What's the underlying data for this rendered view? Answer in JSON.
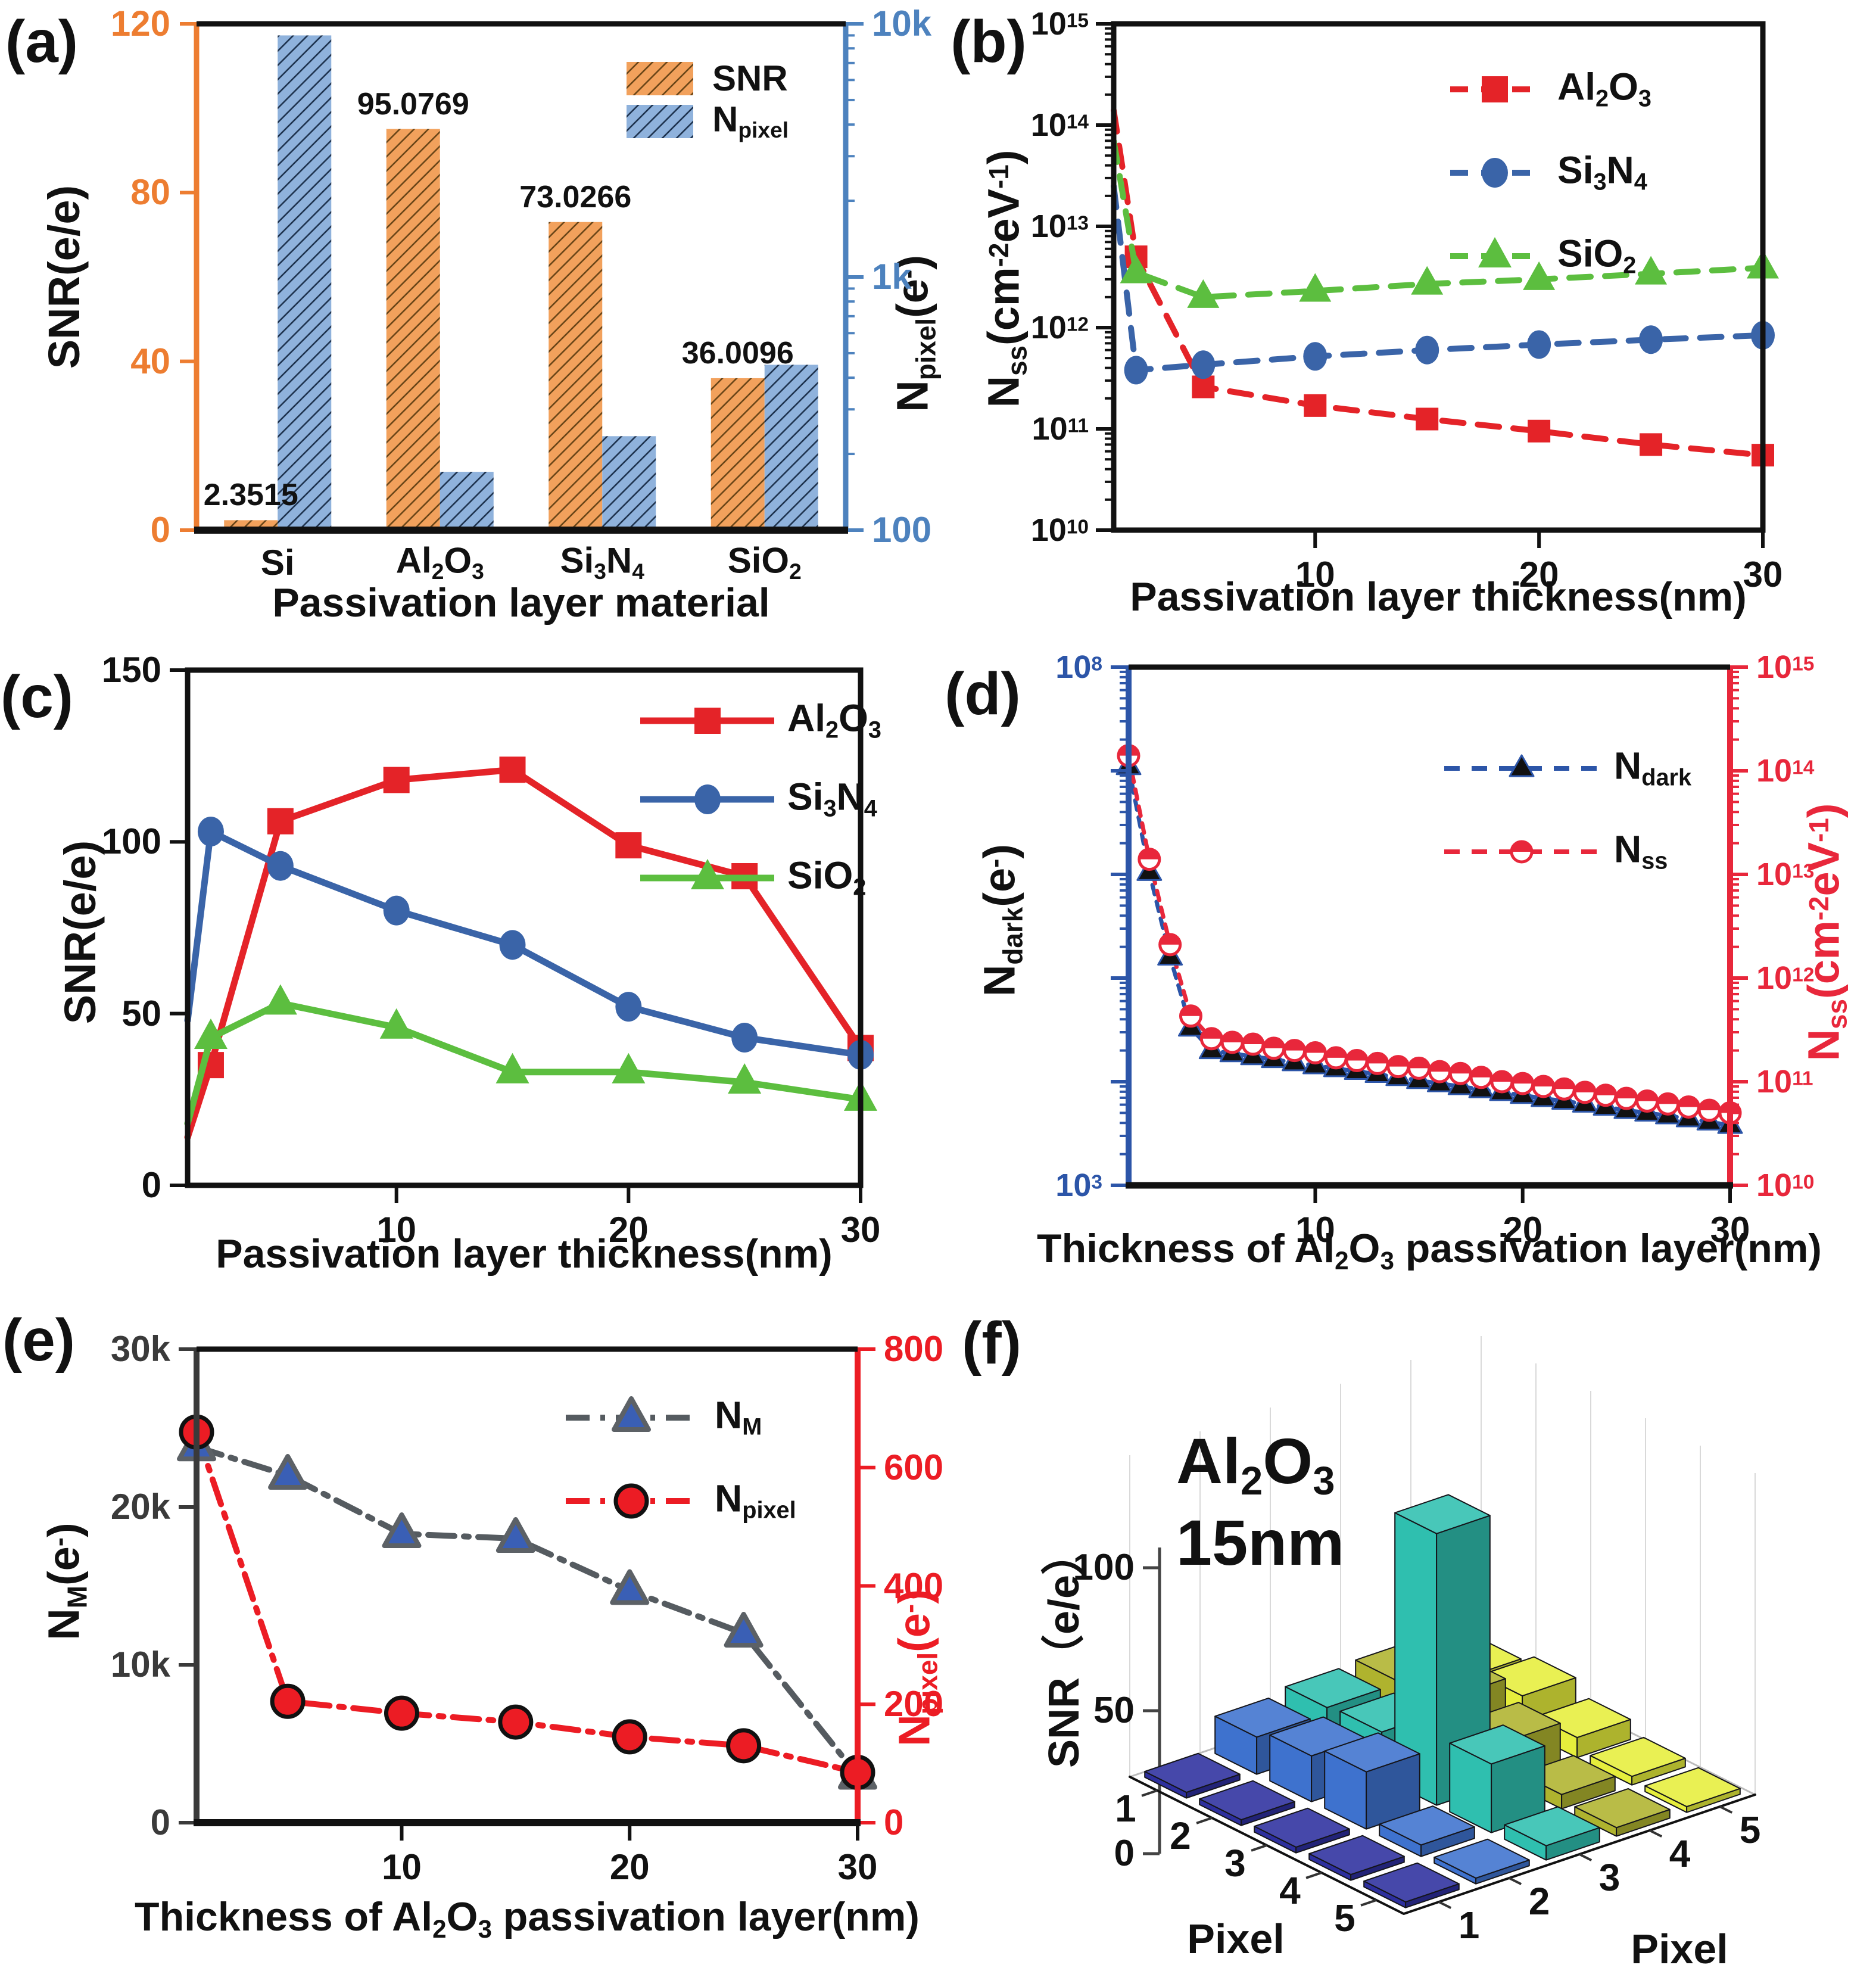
{
  "chart_data": [
    {
      "id": "a",
      "panel_label": "(a)",
      "type": "bar",
      "categories": [
        "Si",
        "Al_{2}O_{3}",
        "Si_{3}N_{4}",
        "SiO_{2}"
      ],
      "xlabel": "Passivation layer material",
      "left_axis": {
        "label": "SNR(e/e)",
        "range": [
          0,
          120
        ],
        "ticks": [
          0,
          40,
          80,
          120
        ],
        "color": "#ED7D31"
      },
      "right_axis": {
        "label": "N_{pixel}(e^{-})",
        "scale": "log",
        "range": [
          100,
          10000
        ],
        "ticks": [
          100,
          1000,
          10000
        ],
        "tick_labels": [
          "100",
          "1k",
          "10k"
        ],
        "color": "#4D82BE"
      },
      "series": [
        {
          "name": "SNR",
          "axis": "left",
          "bar_color": "#F2A15C",
          "hatch": "#6b4618",
          "values": [
            2.3515,
            95.0769,
            73.0266,
            36.0096
          ],
          "value_labels": [
            "2.3515",
            "95.0769",
            "73.0266",
            "36.0096"
          ]
        },
        {
          "name": "N_{pixel}",
          "axis": "right",
          "bar_color": "#8FB2DC",
          "hatch": "#1f3450",
          "values": [
            9000,
            170,
            235,
            450
          ]
        }
      ],
      "legend": [
        "SNR",
        "N_{pixel}"
      ]
    },
    {
      "id": "b",
      "panel_label": "(b)",
      "type": "line",
      "xlabel": "Passivation layer thickness(nm)",
      "x_range": [
        1,
        30
      ],
      "x_ticks": [
        10,
        20,
        30
      ],
      "y_axis": {
        "label": "N_{ss}(cm^{-2}eV^{-1})",
        "scale": "log",
        "range": [
          10000000000.0,
          1000000000000000.0
        ],
        "tick_labels": [
          "10^{10}",
          "10^{11}",
          "10^{12}",
          "10^{13}",
          "10^{14}",
          "10^{15}"
        ]
      },
      "x": [
        1,
        2,
        5,
        10,
        15,
        20,
        25,
        30
      ],
      "series": [
        {
          "name": "Al_{2}O_{3}",
          "color": "#E42328",
          "marker": "square",
          "line": "dashed",
          "values": [
            140000000000000.0,
            5000000000000.0,
            260000000000.0,
            170000000000.0,
            125000000000.0,
            95000000000.0,
            70000000000.0,
            55000000000.0
          ]
        },
        {
          "name": "Si_{3}N_{4}",
          "color": "#3A64A8",
          "marker": "circle",
          "line": "dashed",
          "values": [
            25000000000000.0,
            380000000000.0,
            430000000000.0,
            520000000000.0,
            600000000000.0,
            680000000000.0,
            760000000000.0,
            840000000000.0
          ]
        },
        {
          "name": "SiO_{2}",
          "color": "#5CBE3F",
          "marker": "triangle",
          "line": "dashed",
          "values": [
            70000000000000.0,
            3500000000000.0,
            2000000000000.0,
            2300000000000.0,
            2700000000000.0,
            3000000000000.0,
            3400000000000.0,
            3900000000000.0
          ]
        }
      ]
    },
    {
      "id": "c",
      "panel_label": "(c)",
      "type": "line",
      "xlabel": "Passivation layer thickness(nm)",
      "x_range": [
        1,
        30
      ],
      "x_ticks": [
        10,
        20,
        30
      ],
      "y_axis": {
        "label": "SNR(e/e)",
        "scale": "linear",
        "range": [
          0,
          150
        ],
        "ticks": [
          0,
          50,
          100,
          150
        ]
      },
      "x": [
        1,
        2,
        5,
        10,
        15,
        20,
        25,
        30
      ],
      "series": [
        {
          "name": "Al_{2}O_{3}",
          "color": "#E42328",
          "marker": "square",
          "line": "solid",
          "values": [
            14,
            35,
            106,
            118,
            121,
            99,
            90,
            40
          ]
        },
        {
          "name": "Si_{3}N_{4}",
          "color": "#3A64A8",
          "marker": "circle",
          "line": "solid",
          "values": [
            48,
            103,
            93,
            80,
            70,
            52,
            43,
            38
          ]
        },
        {
          "name": "SiO_{2}",
          "color": "#5CBE3F",
          "marker": "triangle",
          "line": "solid",
          "values": [
            18,
            43,
            53,
            46,
            33,
            33,
            30,
            25
          ]
        }
      ]
    },
    {
      "id": "d",
      "panel_label": "(d)",
      "type": "line",
      "xlabel": "Thickness of Al_{2}O_{3} passivation layer(nm)",
      "x_range": [
        1,
        30
      ],
      "x_ticks": [
        10,
        20,
        30
      ],
      "left_axis": {
        "label": "N_{dark}(e^{-})",
        "scale": "log",
        "range": [
          1000.0,
          100000000.0
        ],
        "tick_labels": [
          "10^{3}",
          "",
          "",
          "",
          "",
          "10^{8}"
        ],
        "color": "#2C55A8"
      },
      "right_axis": {
        "label": "N_{ss}(cm^{-2}eV^{-1})",
        "scale": "log",
        "range": [
          10000000000.0,
          1000000000000000.0
        ],
        "tick_labels": [
          "10^{10}",
          "10^{11}",
          "10^{12}",
          "10^{13}",
          "10^{14}",
          "10^{15}"
        ],
        "color": "#E8273B"
      },
      "x": [
        1,
        2,
        3,
        4,
        5,
        6,
        7,
        8,
        9,
        10,
        11,
        12,
        13,
        14,
        15,
        16,
        17,
        18,
        19,
        20,
        21,
        22,
        23,
        24,
        25,
        26,
        27,
        28,
        29,
        30
      ],
      "series": [
        {
          "name": "N_{dark}",
          "axis": "left",
          "color": "#2C55A8",
          "marker": "tri-black",
          "line": "dashed-short",
          "values": [
            11000000.0,
            1050000.0,
            160000.0,
            33000.0,
            20000.0,
            18700.0,
            17500.0,
            16400.0,
            15300.0,
            14300.0,
            13400.0,
            12600.0,
            11800.0,
            11000.0,
            10300.0,
            9600,
            9000,
            8400,
            7900,
            7400,
            6900,
            6500,
            6100,
            5700,
            5300,
            5000,
            4700,
            4400,
            4100,
            3800
          ]
        },
        {
          "name": "N_{ss}",
          "axis": "right",
          "color": "#E8273B",
          "marker": "half-circle",
          "line": "dashed-short",
          "values": [
            140000000000000.0,
            14000000000000.0,
            2100000000000.0,
            430000000000.0,
            260000000000.0,
            240000000000.0,
            230000000000.0,
            210000000000.0,
            200000000000.0,
            190000000000.0,
            170000000000.0,
            160000000000.0,
            150000000000.0,
            140000000000.0,
            135000000000.0,
            125000000000.0,
            120000000000.0,
            110000000000.0,
            100000000000.0,
            96000000000.0,
            90000000000.0,
            85000000000.0,
            79000000000.0,
            74000000000.0,
            69000000000.0,
            65000000000.0,
            61000000000.0,
            57000000000.0,
            53000000000.0,
            50000000000.0
          ]
        }
      ]
    },
    {
      "id": "e",
      "panel_label": "(e)",
      "type": "line",
      "xlabel": "Thickness of Al_{2}O_{3} passivation layer(nm)",
      "x_range": [
        1,
        30
      ],
      "x_ticks": [
        10,
        20,
        30
      ],
      "left_axis": {
        "label": "N_{M}(e^{-})",
        "scale": "linear",
        "range": [
          0,
          30000
        ],
        "ticks": [
          0,
          10000,
          20000,
          30000
        ],
        "tick_labels": [
          "0",
          "10k",
          "20k",
          "30k"
        ],
        "color": "#3a3a3a"
      },
      "right_axis": {
        "label": "N_{pixel}(e^{-})",
        "scale": "linear",
        "range": [
          0,
          800
        ],
        "ticks": [
          0,
          200,
          400,
          600,
          800
        ],
        "tick_labels": [
          "0",
          "200",
          "400",
          "600",
          "800"
        ],
        "color": "#EC1C24"
      },
      "x": [
        1,
        5,
        10,
        15,
        20,
        25,
        30
      ],
      "series": [
        {
          "name": "N_{M}",
          "axis": "left",
          "color": "#555B60",
          "marker": "tri-blue",
          "line": "dashdot",
          "values": [
            23800,
            22000,
            18300,
            18000,
            14700,
            12000,
            3000
          ]
        },
        {
          "name": "N_{pixel}",
          "axis": "right",
          "color": "#EC1C24",
          "marker": "circle-red",
          "line": "dashdot",
          "values": [
            660,
            205,
            185,
            170,
            145,
            130,
            85
          ]
        }
      ]
    },
    {
      "id": "f",
      "panel_label": "(f)",
      "type": "bar3d",
      "annotation": [
        "Al_{2}O_{3}",
        "15nm"
      ],
      "z_axis": {
        "label": "SNR（e/e）",
        "ticks": [
          0,
          50,
          100
        ]
      },
      "x_axis_label": "Pixel",
      "y_axis_label": "Pixel",
      "x_ticks": [
        "1",
        "2",
        "3",
        "4",
        "5"
      ],
      "y_ticks": [
        "1",
        "2",
        "3",
        "4",
        "5"
      ],
      "column_colors": [
        "#2D2F9E",
        "#3E72CE",
        "#2FBFAF",
        "#AFB32E",
        "#E6EE3C"
      ],
      "values": [
        [
          2,
          13,
          15,
          16,
          9
        ],
        [
          2,
          16,
          16,
          20,
          12
        ],
        [
          2,
          20,
          95,
          14,
          7
        ],
        [
          2,
          4,
          24,
          5,
          3
        ],
        [
          2,
          2,
          5,
          3,
          2
        ]
      ]
    }
  ]
}
